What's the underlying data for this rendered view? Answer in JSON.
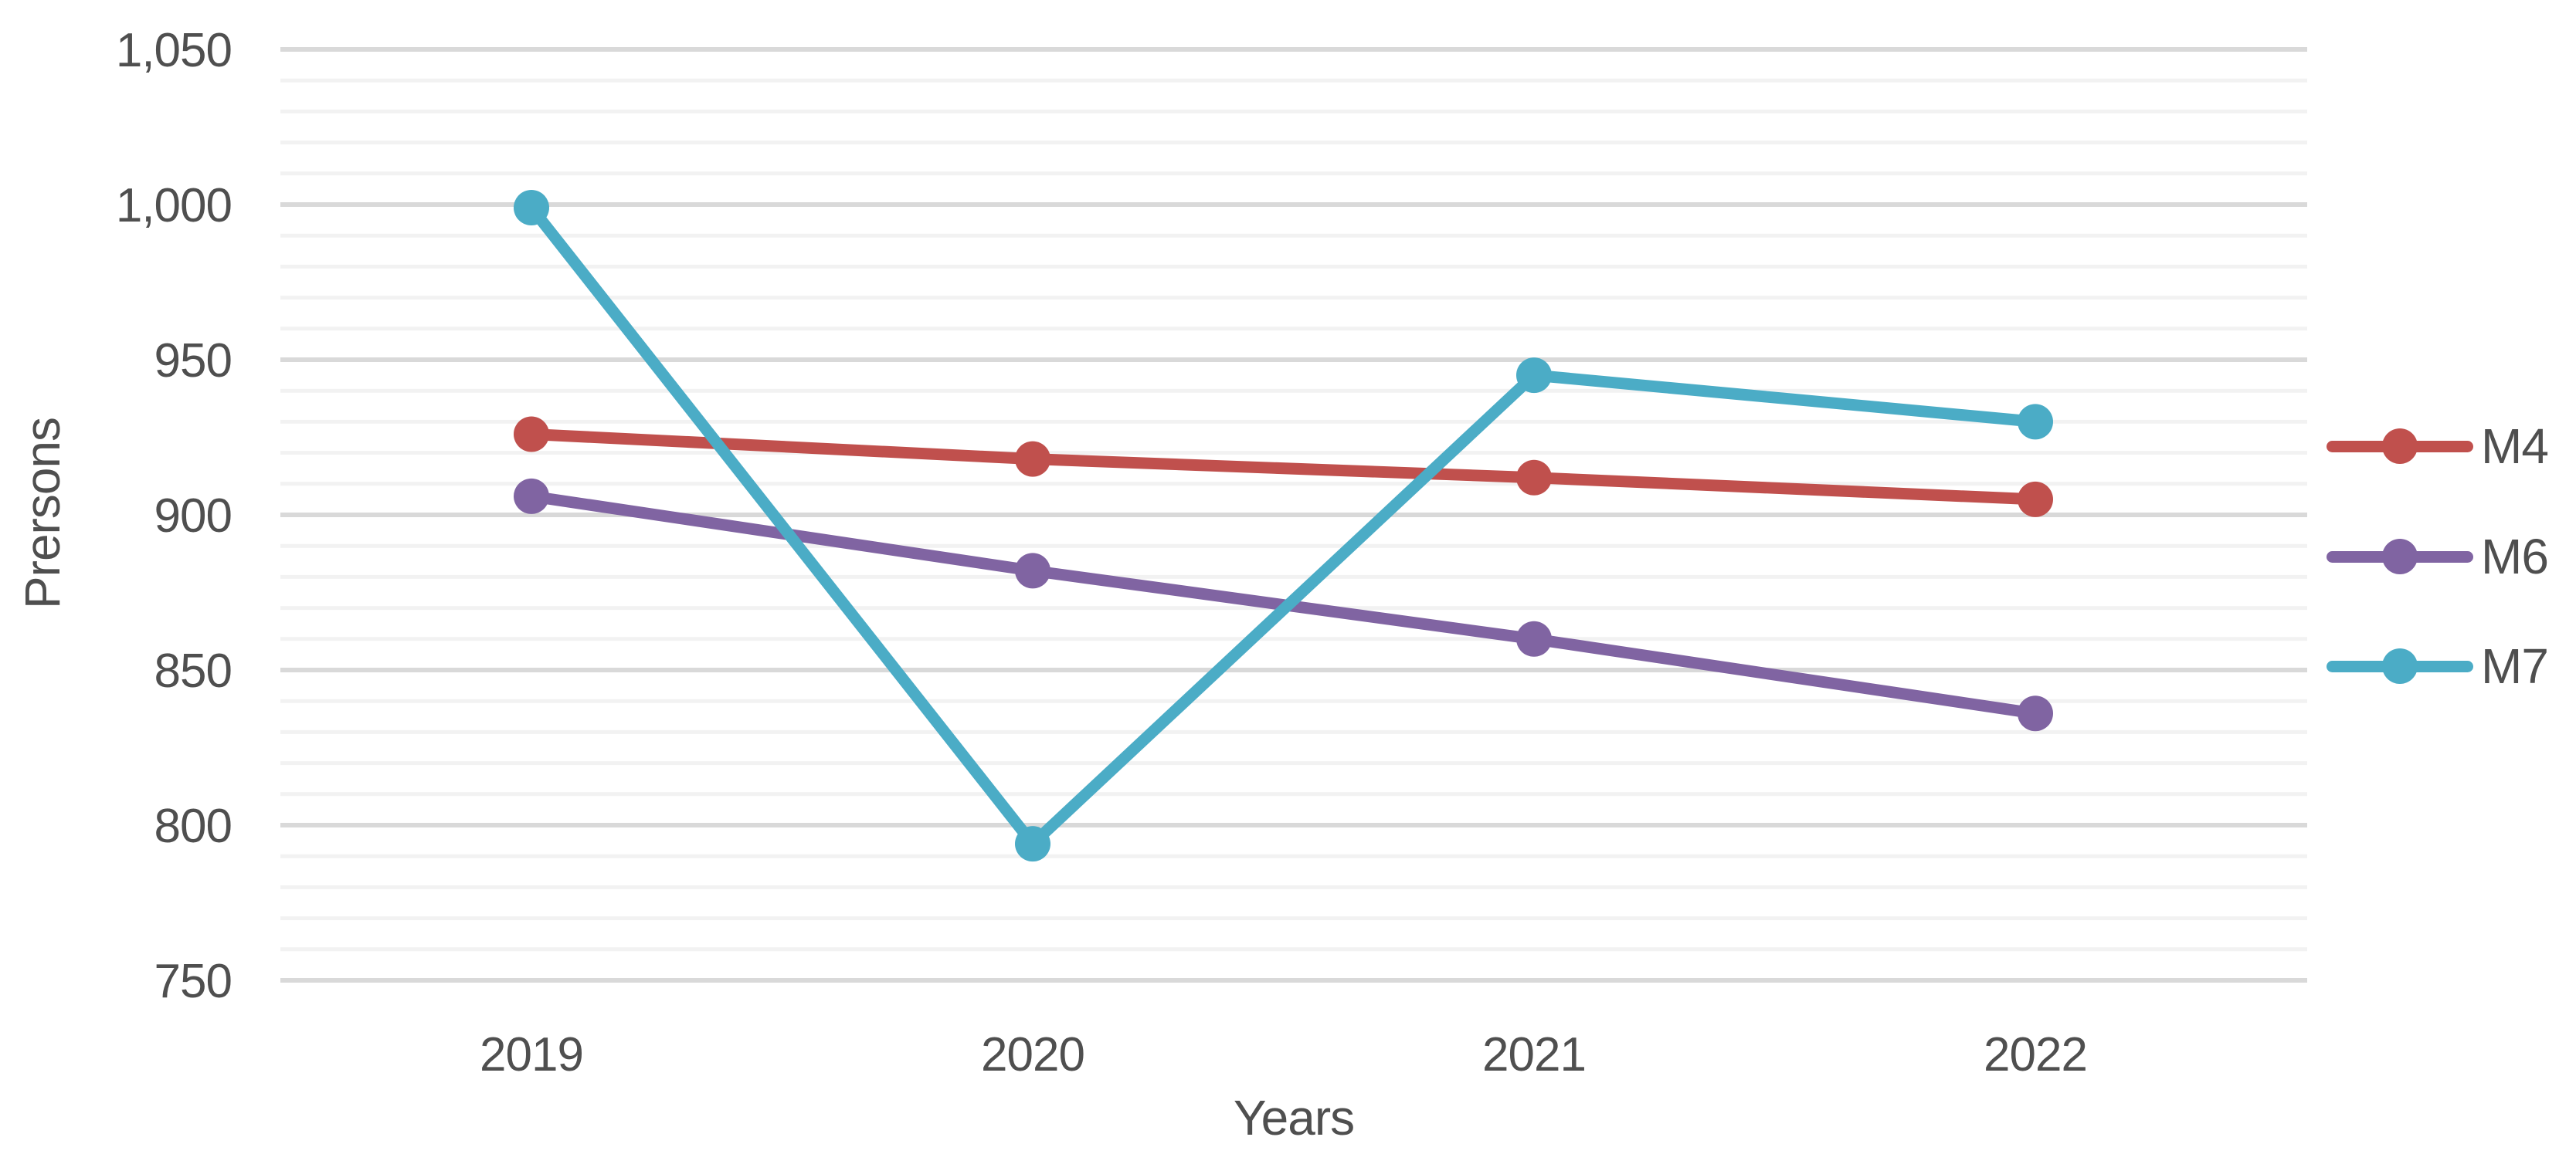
{
  "chart_data": {
    "type": "line",
    "title": "",
    "xlabel": "Years",
    "ylabel": "Prersons",
    "categories": [
      "2019",
      "2020",
      "2021",
      "2022"
    ],
    "series": [
      {
        "name": "M4",
        "color": "#C0504D",
        "values": [
          926,
          918,
          912,
          905
        ]
      },
      {
        "name": "M6",
        "color": "#8064A2",
        "values": [
          906,
          882,
          860,
          836
        ]
      },
      {
        "name": "M7",
        "color": "#4BACC6",
        "values": [
          999,
          794,
          945,
          930
        ]
      }
    ],
    "y_axis": {
      "min": 750,
      "max": 1050,
      "major_step": 50,
      "minor_step": 10,
      "tick_labels": [
        "750",
        "800",
        "850",
        "900",
        "950",
        "1,000",
        "1,050"
      ]
    },
    "x_axis": {
      "tick_labels": [
        "2019",
        "2020",
        "2021",
        "2022"
      ]
    },
    "legend": {
      "position": "right",
      "entries": [
        "M4",
        "M6",
        "M7"
      ]
    },
    "grid": {
      "major": true,
      "minor": true
    },
    "style_colors": {
      "background": "#FFFFFF",
      "major_gridline": "#D9D9D9",
      "minor_gridline": "#F2F2F2",
      "axis_text": "#4F4F4F"
    }
  }
}
